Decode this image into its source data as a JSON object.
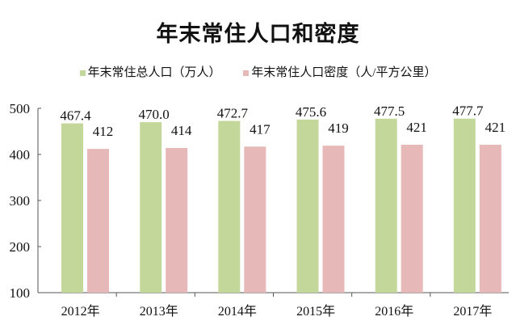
{
  "chart_data": {
    "type": "bar",
    "title": "年末常住人口和密度",
    "categories": [
      "2012年",
      "2013年",
      "2014年",
      "2015年",
      "2016年",
      "2017年"
    ],
    "series": [
      {
        "name": "年末常住总人口（万人）",
        "values": [
          467.4,
          470.0,
          472.7,
          475.6,
          477.5,
          477.7
        ],
        "labels": [
          "467.4",
          "470.0",
          "472.7",
          "475.6",
          "477.5",
          "477.7"
        ],
        "color": "#c4d79b"
      },
      {
        "name": "年末常住人口密度（人/平方公里）",
        "values": [
          412,
          414,
          417,
          419,
          421,
          421
        ],
        "labels": [
          "412",
          "414",
          "417",
          "419",
          "421",
          "421"
        ],
        "color": "#e6b9b8"
      }
    ],
    "ylim": [
      100,
      500
    ],
    "yticks": [
      "100",
      "200",
      "300",
      "400",
      "500"
    ],
    "grid": false,
    "legend": "top"
  }
}
